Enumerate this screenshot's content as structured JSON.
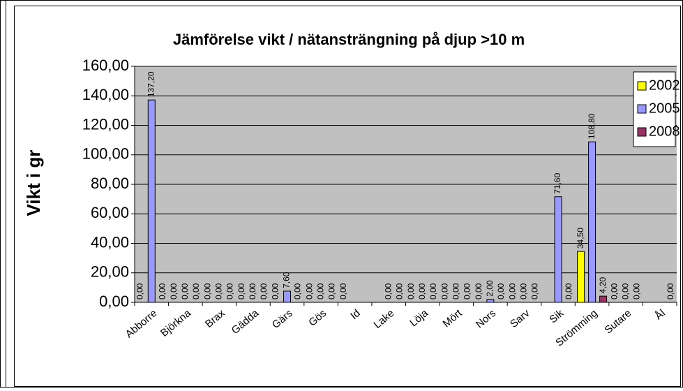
{
  "chart_data": {
    "type": "bar",
    "title": "Jämförelse vikt / nätansträngning på djup >10 m",
    "y_label": "Vikt i gr",
    "categories": [
      "Abborre",
      "Björkna",
      "Brax",
      "Gädda",
      "Gärs",
      "Gös",
      "Id",
      "Lake",
      "Löja",
      "Mört",
      "Nors",
      "Sarv",
      "Sik",
      "Strömming",
      "Sutare",
      "Ål"
    ],
    "series": [
      {
        "name": "2002",
        "color": "#ffff00",
        "values": [
          0,
          0,
          0,
          0,
          0,
          0,
          0,
          null,
          0,
          0,
          0,
          0,
          null,
          34.5,
          0,
          null
        ],
        "value_labels": [
          "0,00",
          "0,00",
          "0,00",
          "0,00",
          "0,00",
          "0,00",
          "0,00",
          null,
          "0,00",
          "0,00",
          "0,00",
          "0,00",
          null,
          "34,50",
          "0,00",
          null
        ]
      },
      {
        "name": "2005",
        "color": "#9999ff",
        "values": [
          137.2,
          0,
          0,
          0,
          7.6,
          0,
          null,
          0,
          0,
          0,
          2,
          0,
          71.6,
          108.8,
          0,
          null
        ],
        "value_labels": [
          "137,20",
          "0,00",
          "0,00",
          "0,00",
          "7,60",
          "0,00",
          null,
          "0,00",
          "0,00",
          "0,00",
          "2,00",
          "0,00",
          "71,60",
          "108,80",
          "0,00",
          null
        ]
      },
      {
        "name": "2008",
        "color": "#993366",
        "values": [
          0,
          0,
          0,
          0,
          0,
          0,
          null,
          0,
          0,
          0,
          0,
          0,
          0,
          4.2,
          0,
          0
        ],
        "value_labels": [
          "0,00",
          "0,00",
          "0,00",
          "0,00",
          "0,00",
          "0,00",
          null,
          "0,00",
          "0,00",
          "0,00",
          "0,00",
          "0,00",
          "0,00",
          "4,20",
          "0,00",
          "0,00"
        ]
      }
    ],
    "ylim": [
      0,
      160
    ],
    "yticks": [
      {
        "value": 0,
        "label": "0,00"
      },
      {
        "value": 20,
        "label": "20,00"
      },
      {
        "value": 40,
        "label": "40,00"
      },
      {
        "value": 60,
        "label": "60,00"
      },
      {
        "value": 80,
        "label": "80,00"
      },
      {
        "value": 100,
        "label": "100,00"
      },
      {
        "value": 120,
        "label": "120,00"
      },
      {
        "value": 140,
        "label": "140,00"
      },
      {
        "value": 160,
        "label": "160,00"
      }
    ],
    "grid": true,
    "legend": "top-right",
    "plot_background": "#c0c0c0"
  }
}
